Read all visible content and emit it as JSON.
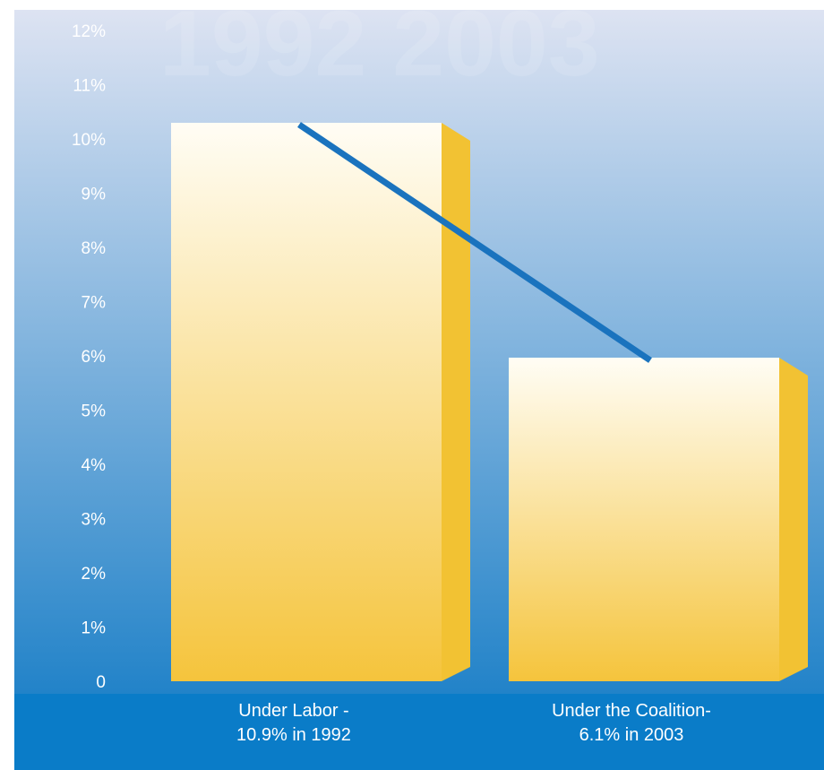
{
  "watermark_text": "1992 2003",
  "colors": {
    "bg_top": "#dde3f2",
    "bg_bottom": "#0d78c4",
    "bottom_band": "#0a7cc8",
    "bar_front_top": "#fffdf5",
    "bar_front_bottom": "#f5c43c",
    "bar_side": "#f2c233",
    "trend_line": "#1a73be"
  },
  "chart_data": {
    "type": "bar",
    "title": "",
    "xlabel": "",
    "ylabel": "",
    "ylim": [
      0,
      12
    ],
    "y_ticks": [
      "0",
      "1%",
      "2%",
      "3%",
      "4%",
      "5%",
      "6%",
      "7%",
      "8%",
      "9%",
      "10%",
      "11%",
      "12%"
    ],
    "categories": [
      [
        "Under Labor -",
        "10.9% in 1992"
      ],
      [
        "Under the Coalition-",
        "6.1% in 2003"
      ]
    ],
    "values": [
      10.9,
      6.1
    ],
    "trend_line": {
      "from": 10.9,
      "to": 6.1
    }
  }
}
